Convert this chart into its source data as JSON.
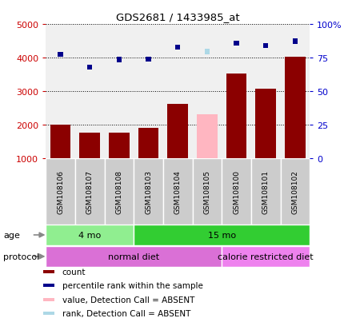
{
  "title": "GDS2681 / 1433985_at",
  "samples": [
    "GSM108106",
    "GSM108107",
    "GSM108108",
    "GSM108103",
    "GSM108104",
    "GSM108105",
    "GSM108100",
    "GSM108101",
    "GSM108102"
  ],
  "counts": [
    2000,
    1750,
    1760,
    1900,
    2620,
    2300,
    3520,
    3060,
    4030
  ],
  "ranks": [
    4100,
    3720,
    3940,
    3960,
    4300,
    4180,
    4430,
    4350,
    4490
  ],
  "absent_flags": [
    false,
    false,
    false,
    false,
    false,
    true,
    false,
    false,
    false
  ],
  "ylim_left": [
    1000,
    5000
  ],
  "ylim_right": [
    0,
    100
  ],
  "left_ticks": [
    1000,
    2000,
    3000,
    4000,
    5000
  ],
  "right_ticks": [
    0,
    25,
    50,
    75,
    100
  ],
  "age_groups": [
    {
      "label": "4 mo",
      "start": 0,
      "end": 3,
      "color": "#90ee90"
    },
    {
      "label": "15 mo",
      "start": 3,
      "end": 9,
      "color": "#32cd32"
    }
  ],
  "protocol_groups": [
    {
      "label": "normal diet",
      "start": 0,
      "end": 6,
      "color": "#da70d6"
    },
    {
      "label": "calorie restricted diet",
      "start": 6,
      "end": 9,
      "color": "#ee82ee"
    }
  ],
  "bar_color_present": "#8b0000",
  "bar_color_absent": "#ffb6c1",
  "rank_color_present": "#00008b",
  "rank_color_absent": "#add8e6",
  "legend_items": [
    {
      "color": "#8b0000",
      "label": "count"
    },
    {
      "color": "#00008b",
      "label": "percentile rank within the sample"
    },
    {
      "color": "#ffb6c1",
      "label": "value, Detection Call = ABSENT"
    },
    {
      "color": "#add8e6",
      "label": "rank, Detection Call = ABSENT"
    }
  ],
  "background_color": "#ffffff",
  "plot_bg": "#f0f0f0",
  "label_bg": "#cccccc",
  "grid_color": "#000000",
  "left_tick_color": "#cc0000",
  "right_tick_color": "#0000cc",
  "rank_scale": 50.0
}
